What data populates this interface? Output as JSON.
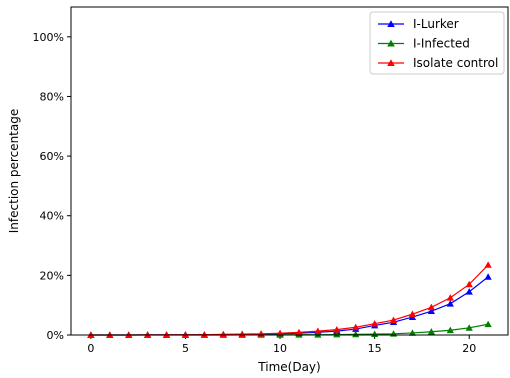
{
  "chart_data": {
    "type": "line",
    "title": "",
    "xlabel": "Time(Day)",
    "ylabel": "Infection percentage",
    "xlim": [
      -1.05,
      22.05
    ],
    "ylim": [
      0,
      110
    ],
    "x_ticks": [
      0,
      5,
      10,
      15,
      20
    ],
    "y_ticks": [
      0,
      20,
      40,
      60,
      80,
      100
    ],
    "y_tick_labels": [
      "0%",
      "20%",
      "40%",
      "60%",
      "80%",
      "100%"
    ],
    "grid": false,
    "legend_position": "top-right",
    "x": [
      0,
      1,
      2,
      3,
      4,
      5,
      6,
      7,
      8,
      9,
      10,
      11,
      12,
      13,
      14,
      15,
      16,
      17,
      18,
      19,
      20,
      21
    ],
    "series": [
      {
        "name": "I-Lurker",
        "color": "#0000ff",
        "marker": "triangle",
        "values": [
          0,
          0,
          0,
          0.05,
          0.05,
          0.1,
          0.1,
          0.15,
          0.2,
          0.3,
          0.4,
          0.6,
          0.9,
          1.3,
          2.0,
          3.2,
          4.3,
          6.0,
          8.0,
          10.5,
          14.5,
          19.5
        ]
      },
      {
        "name": "I-Infected",
        "color": "#008000",
        "marker": "triangle",
        "values": [
          0,
          0,
          0,
          0,
          0,
          0,
          0,
          0,
          0.02,
          0.05,
          0.05,
          0.1,
          0.1,
          0.15,
          0.2,
          0.3,
          0.4,
          0.7,
          1.1,
          1.6,
          2.4,
          3.6
        ]
      },
      {
        "name": "Isolate control",
        "color": "#ff0000",
        "marker": "triangle",
        "values": [
          0,
          0,
          0,
          0.05,
          0.05,
          0.1,
          0.1,
          0.2,
          0.3,
          0.4,
          0.6,
          0.9,
          1.3,
          1.8,
          2.6,
          3.8,
          5.0,
          7.0,
          9.3,
          12.5,
          17.0,
          23.5
        ]
      }
    ]
  }
}
